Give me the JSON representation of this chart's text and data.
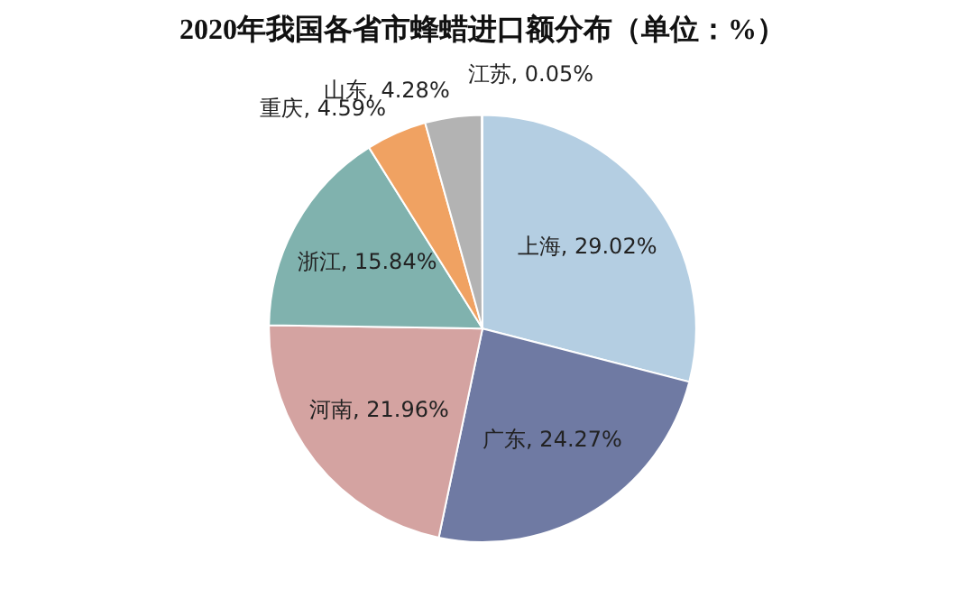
{
  "chart_data": {
    "type": "pie",
    "title": "2020年我国各省市蜂蜡进口额分布（单位：%）",
    "categories": [
      "上海",
      "广东",
      "河南",
      "浙江",
      "重庆",
      "山东",
      "江苏"
    ],
    "values": [
      29.02,
      24.27,
      21.96,
      15.84,
      4.59,
      4.28,
      0.05
    ],
    "value_labels": [
      "29.02%",
      "24.27%",
      "21.96%",
      "15.84%",
      "4.59%",
      "4.28%",
      "0.05%"
    ],
    "colors": [
      "#b4cee2",
      "#6f7aa3",
      "#d4a3a1",
      "#80b2ae",
      "#f0a262",
      "#b3b3b3",
      "#a8c0d8"
    ],
    "legend": false
  }
}
